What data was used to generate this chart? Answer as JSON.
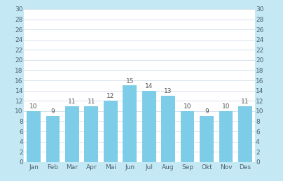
{
  "categories": [
    "Jan",
    "Feb",
    "Mar",
    "Apr",
    "Mai",
    "Jun",
    "Jul",
    "Aug",
    "Sep",
    "Okt",
    "Nov",
    "Des"
  ],
  "values": [
    10,
    9,
    11,
    11,
    12,
    15,
    14,
    13,
    10,
    9,
    10,
    11
  ],
  "bar_color": "#7DCDE8",
  "background_color": "#ffffff",
  "outer_background": "#C5E8F5",
  "ylim": [
    0,
    30
  ],
  "yticks": [
    0,
    2,
    4,
    6,
    8,
    10,
    12,
    14,
    16,
    18,
    20,
    22,
    24,
    26,
    28,
    30
  ],
  "grid_color": "#d0dde8",
  "tick_fontsize": 6.5,
  "value_fontsize": 6.5,
  "value_color": "#555555"
}
